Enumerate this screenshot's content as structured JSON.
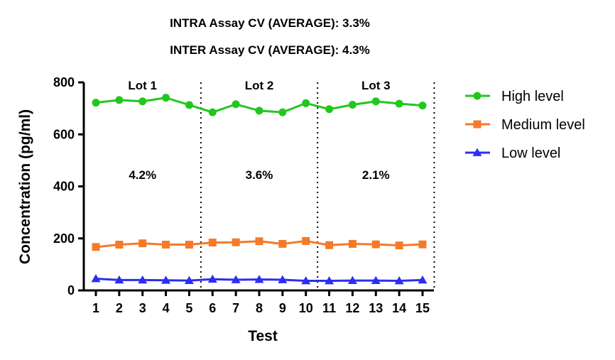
{
  "chart_data": {
    "type": "line",
    "header_lines": [
      "INTRA Assay CV (AVERAGE): 3.3%",
      "INTER Assay CV (AVERAGE): 4.3%"
    ],
    "xlabel": "Test",
    "ylabel": "Concentration (pg/ml)",
    "x": [
      1,
      2,
      3,
      4,
      5,
      6,
      7,
      8,
      9,
      10,
      11,
      12,
      13,
      14,
      15
    ],
    "ylim": [
      0,
      800
    ],
    "yticks": [
      0,
      200,
      400,
      600,
      800
    ],
    "grid": false,
    "legend_position": "right",
    "series": [
      {
        "name": "High level",
        "marker": "circle",
        "color": "#22c71e",
        "values": [
          722,
          732,
          727,
          741,
          713,
          685,
          716,
          691,
          685,
          720,
          697,
          714,
          727,
          718,
          711
        ]
      },
      {
        "name": "Medium level",
        "marker": "square",
        "color": "#f47a2a",
        "values": [
          167,
          176,
          181,
          176,
          176,
          184,
          185,
          189,
          179,
          190,
          174,
          179,
          177,
          173,
          177
        ]
      },
      {
        "name": "Low level",
        "marker": "triangle",
        "color": "#2b2ef2",
        "values": [
          45,
          40,
          40,
          39,
          38,
          43,
          41,
          42,
          41,
          37,
          37,
          38,
          38,
          37,
          40
        ]
      }
    ],
    "lots": [
      {
        "label": "Lot 1",
        "cv": "4.2%"
      },
      {
        "label": "Lot 2",
        "cv": "3.6%"
      },
      {
        "label": "Lot 3",
        "cv": "2.1%"
      }
    ]
  }
}
